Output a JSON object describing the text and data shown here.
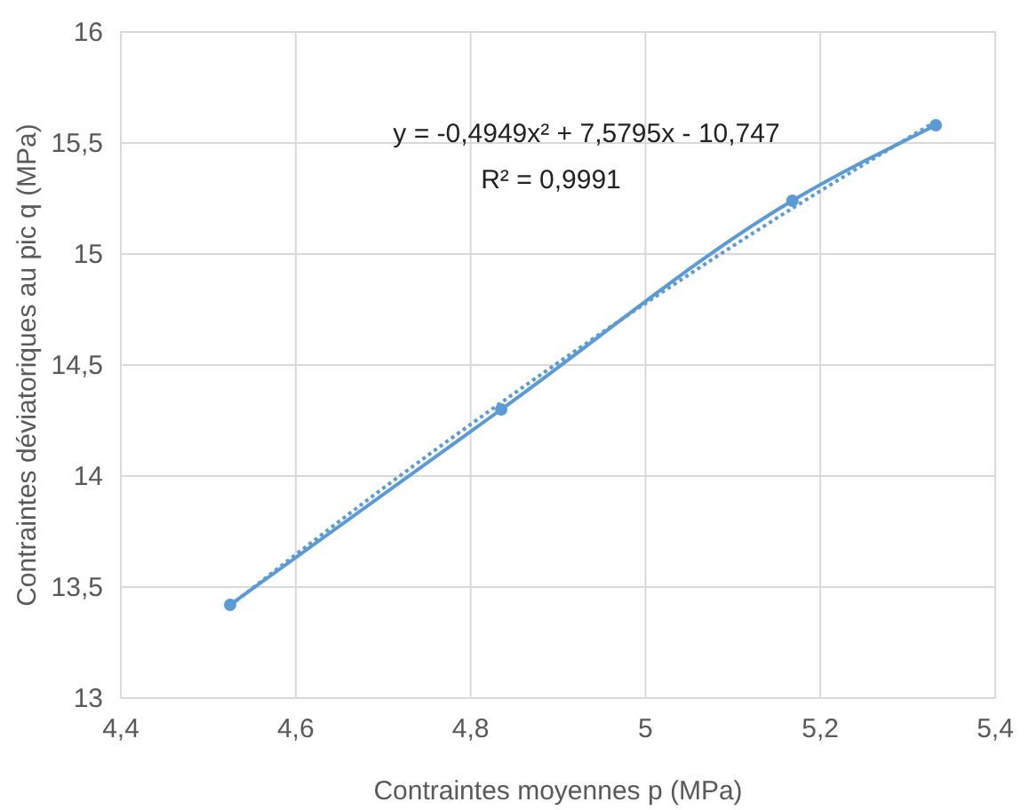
{
  "chart_data": {
    "type": "line",
    "xlabel": "Contraintes moyennes p (MPa)",
    "ylabel": "Contraintes déviatoriques au pic q (MPa)",
    "x": [
      4.525,
      4.835,
      5.168,
      5.332
    ],
    "series": [
      {
        "color": "#5b9bd5",
        "values": [
          13.42,
          14.3,
          15.24,
          15.58
        ],
        "marker": "circle",
        "line_style": "solid"
      },
      {
        "type": "line",
        "color": "#5b9bd5",
        "x": [
          4.525,
          4.7,
          4.835,
          5.0,
          5.168,
          5.332
        ],
        "values": [
          13.417,
          13.945,
          14.331,
          14.778,
          15.206,
          15.597
        ],
        "marker": "none",
        "line_style": "dotted"
      }
    ],
    "xlim": [
      4.4,
      5.4
    ],
    "xticks": [
      {
        "value": 4.4,
        "label": "4,4"
      },
      {
        "value": 4.6,
        "label": "4,6"
      },
      {
        "value": 4.8,
        "label": "4,8"
      },
      5,
      {
        "value": 5.2,
        "label": "5,2"
      },
      {
        "value": 5.4,
        "label": "5,4"
      }
    ],
    "ylim": [
      13,
      16
    ],
    "yticks": [
      13,
      {
        "value": 13.5,
        "label": "13,5"
      },
      14,
      {
        "value": 14.5,
        "label": "14,5"
      },
      15,
      {
        "value": 15.5,
        "label": "15,5"
      },
      16
    ],
    "grid": true,
    "annotations": [
      "y = -0,4949x² + 7,5795x - 10,747",
      "R² = 0,9991"
    ]
  }
}
